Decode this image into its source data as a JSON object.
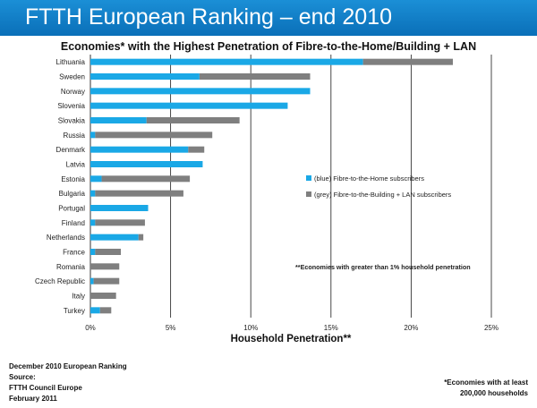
{
  "header": {
    "title": "FTTH European Ranking – end 2010"
  },
  "footer": {
    "left": [
      "December 2010 European Ranking",
      "Source:",
      "FTTH Council Europe",
      "February 2011"
    ],
    "right": [
      "*Economies with at least",
      "200,000 households"
    ]
  },
  "colors": {
    "banner": "#0a6fb8",
    "blue": "#1aa8e6",
    "grey": "#7f7f7f",
    "grid": "#333333"
  },
  "chart_data": {
    "type": "bar",
    "orientation": "horizontal",
    "stacked": true,
    "title": "Economies* with the Highest Penetration of Fibre-to-the-Home/Building + LAN",
    "xlabel": "Household Penetration**",
    "ylabel": "",
    "xlim": [
      0,
      25
    ],
    "x_ticks": [
      "0%",
      "5%",
      "10%",
      "15%",
      "20%",
      "25%"
    ],
    "grid": "vertical",
    "categories": [
      "Lithuania",
      "Sweden",
      "Norway",
      "Slovenia",
      "Slovakia",
      "Russia",
      "Denmark",
      "Latvia",
      "Estonia",
      "Bulgaria",
      "Portugal",
      "Finland",
      "Netherlands",
      "France",
      "Romania",
      "Czech Republic",
      "Italy",
      "Turkey"
    ],
    "series": [
      {
        "name": "(blue) Fibre-to-the-Home subscribers",
        "color": "#1aa8e6",
        "values": [
          17.0,
          6.8,
          13.7,
          12.3,
          3.5,
          0.3,
          6.1,
          7.0,
          0.7,
          0.3,
          3.6,
          0.3,
          3.0,
          0.3,
          0.0,
          0.2,
          0.0,
          0.6
        ]
      },
      {
        "name": "(grey) Fibre-to-the-Building + LAN subscribers",
        "color": "#7f7f7f",
        "values": [
          5.6,
          6.9,
          0.0,
          0.0,
          5.8,
          7.3,
          1.0,
          0.0,
          5.5,
          5.5,
          0.0,
          3.1,
          0.3,
          1.6,
          1.8,
          1.6,
          1.6,
          0.7
        ]
      }
    ],
    "legend_position": "right-middle",
    "annotation": "**Economies with greater than 1% household penetration"
  }
}
